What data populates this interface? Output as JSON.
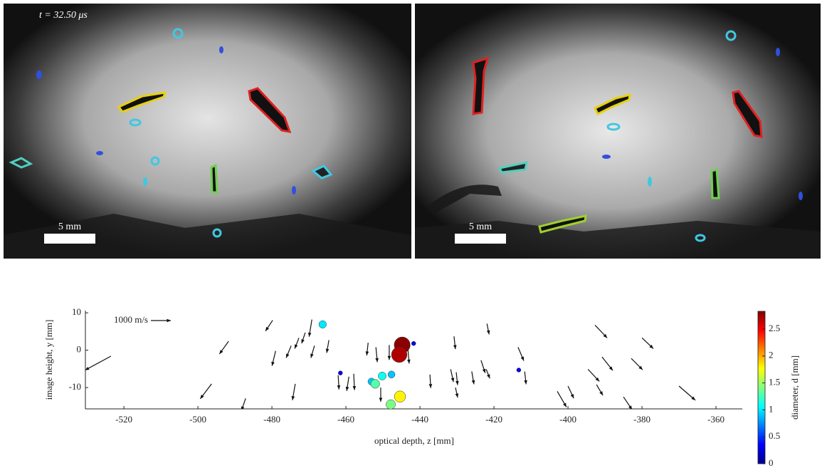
{
  "images": [
    {
      "time_label": "t = 32.50 μs",
      "scale_label": "5 mm"
    },
    {
      "scale_label": "5 mm"
    }
  ],
  "chart_data": {
    "type": "quiver",
    "xlabel": "optical depth, z [mm]",
    "ylabel": "image height, y [mm]",
    "xlim": [
      -530.4,
      -352.9
    ],
    "ylim": [
      -15.7,
      10.6
    ],
    "xticks": [
      -520,
      -500,
      -480,
      -460,
      -440,
      -420,
      -400,
      -380,
      -360
    ],
    "yticks": [
      10,
      0,
      -10
    ],
    "quiver_key": {
      "value": 1000,
      "label": "1000 m/s"
    },
    "arrows": {
      "z": [
        -523.5,
        -491.7,
        -479.8,
        -496.3,
        -487.1,
        -479.0,
        -474.8,
        -472.7,
        -471.0,
        -469.2,
        -468.5,
        -464.6,
        -454.0,
        -473.7,
        -459.2,
        -457.9,
        -462.1,
        -451.9,
        -448.3,
        -443.3,
        -430.8,
        -421.9,
        -413.5,
        -437.3,
        -431.7,
        -430.2,
        -430.4,
        -426.0,
        -423.5,
        -422.1,
        -411.7,
        -402.9,
        -400.0,
        -392.7,
        -390.8,
        -394.6,
        -392.3,
        -382.9,
        -380.0,
        -370.0,
        -385.0,
        -450.6
      ],
      "y": [
        -1.6,
        2.4,
        8.0,
        -9.0,
        -12.9,
        -0.2,
        1.2,
        3.3,
        4.7,
        8.2,
        1.2,
        2.7,
        2.0,
        -9.0,
        -7.1,
        -6.3,
        -6.7,
        0.8,
        1.4,
        0.8,
        3.7,
        7.1,
        0.8,
        -6.5,
        -5.1,
        -5.9,
        -10.0,
        -5.7,
        -2.7,
        -5.1,
        -5.7,
        -11.0,
        -9.6,
        6.7,
        -1.8,
        -5.1,
        -9.2,
        -2.2,
        3.3,
        -9.6,
        -12.5,
        -10.0
      ],
      "u": [
        -1300,
        -460,
        -360,
        -570,
        -210,
        -180,
        -250,
        -210,
        -180,
        -140,
        -180,
        -110,
        -70,
        -140,
        -110,
        40,
        40,
        70,
        0,
        70,
        70,
        110,
        290,
        40,
        140,
        70,
        110,
        110,
        210,
        180,
        70,
        460,
        290,
        610,
        540,
        570,
        320,
        570,
        570,
        820,
        430,
        0
      ],
      "v": [
        -700,
        -640,
        -540,
        -750,
        -610,
        -750,
        -610,
        -540,
        -540,
        -860,
        -610,
        -640,
        -640,
        -820,
        -710,
        -820,
        -710,
        -750,
        -750,
        -820,
        -640,
        -540,
        -680,
        -680,
        -640,
        -640,
        -500,
        -640,
        -640,
        -460,
        -640,
        -790,
        -610,
        -640,
        -680,
        -610,
        -540,
        -570,
        -540,
        -710,
        -640,
        -710
      ]
    },
    "spheres": {
      "z": [
        -466.3,
        -444.8,
        -445.6,
        -441.7,
        -461.5,
        -450.2,
        -447.7,
        -453.1,
        -452.1,
        -445.4,
        -447.9,
        -413.3
      ],
      "y": [
        6.9,
        1.4,
        -1.2,
        1.8,
        -6.1,
        -6.9,
        -6.5,
        -8.4,
        -9.0,
        -12.4,
        -14.5,
        -5.3
      ],
      "d": [
        1.0,
        2.8,
        2.7,
        0.3,
        0.3,
        1.1,
        0.9,
        0.9,
        1.3,
        1.8,
        1.4,
        0.3
      ]
    },
    "colorbar": {
      "label": "diameter, d [mm]",
      "clim": [
        0,
        2.83
      ],
      "ticks": [
        0,
        0.5,
        1,
        1.5,
        2,
        2.5
      ],
      "colormap": "jet"
    }
  }
}
